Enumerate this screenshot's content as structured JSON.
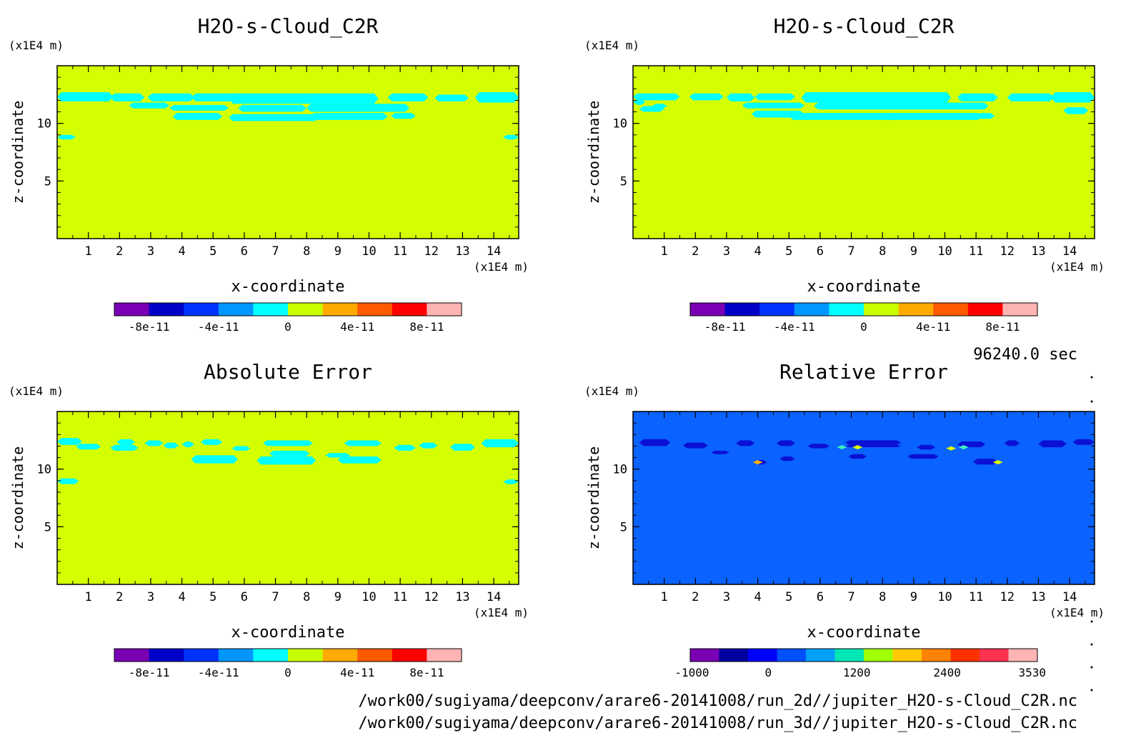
{
  "time_label": "96240.0 sec",
  "files": [
    "/work00/sugiyama/deepconv/arare6-20141008/run_2d//jupiter_H2O-s-Cloud_C2R.nc",
    "/work00/sugiyama/deepconv/arare6-20141008/run_3d//jupiter_H2O-s-Cloud_C2R.nc"
  ],
  "colors": {
    "background_field": "#d4ff00",
    "cloud": "#00ffff",
    "relative_background": "#0a62ff",
    "relative_dark": "#0b11d4",
    "highlight_yellow": "#e2ff00",
    "highlight_orange": "#ffb000"
  },
  "chart_data": [
    {
      "type": "heatmap",
      "title": "H2O-s-Cloud_C2R",
      "xlabel": "x-coordinate",
      "ylabel": "z-coordinate",
      "x_unit": "(x1E4 m)",
      "y_unit": "(x1E4 m)",
      "xlim": [
        0,
        14.8
      ],
      "ylim": [
        0,
        15
      ],
      "x_ticks": [
        "1",
        "2",
        "3",
        "4",
        "5",
        "6",
        "7",
        "8",
        "9",
        "10",
        "11",
        "12",
        "13",
        "14"
      ],
      "y_ticks": [
        "5",
        "10"
      ],
      "cloud_layer_z": [
        10.2,
        12.6
      ],
      "colorbar": {
        "colors": [
          "#7a00b4",
          "#0000c8",
          "#0032ff",
          "#0096ff",
          "#00ffff",
          "#c8ff00",
          "#ffaa00",
          "#ff5a00",
          "#ff0000",
          "#ffb4b4"
        ],
        "labels": [
          "-8e-11",
          "-4e-11",
          "0",
          "4e-11",
          "8e-11"
        ]
      }
    },
    {
      "type": "heatmap",
      "title": "H2O-s-Cloud_C2R",
      "xlabel": "x-coordinate",
      "ylabel": "z-coordinate",
      "x_unit": "(x1E4 m)",
      "y_unit": "(x1E4 m)",
      "xlim": [
        0,
        14.8
      ],
      "ylim": [
        0,
        15
      ],
      "x_ticks": [
        "1",
        "2",
        "3",
        "4",
        "5",
        "6",
        "7",
        "8",
        "9",
        "10",
        "11",
        "12",
        "13",
        "14"
      ],
      "y_ticks": [
        "5",
        "10"
      ],
      "cloud_layer_z": [
        10.3,
        12.6
      ],
      "colorbar": {
        "colors": [
          "#7a00b4",
          "#0000c8",
          "#0032ff",
          "#0096ff",
          "#00ffff",
          "#c8ff00",
          "#ffaa00",
          "#ff5a00",
          "#ff0000",
          "#ffb4b4"
        ],
        "labels": [
          "-8e-11",
          "-4e-11",
          "0",
          "4e-11",
          "8e-11"
        ]
      }
    },
    {
      "type": "heatmap",
      "title": "Absolute Error",
      "xlabel": "x-coordinate",
      "ylabel": "z-coordinate",
      "x_unit": "(x1E4 m)",
      "y_unit": "(x1E4 m)",
      "xlim": [
        0,
        14.8
      ],
      "ylim": [
        0,
        15
      ],
      "x_ticks": [
        "1",
        "2",
        "3",
        "4",
        "5",
        "6",
        "7",
        "8",
        "9",
        "10",
        "11",
        "12",
        "13",
        "14"
      ],
      "y_ticks": [
        "5",
        "10"
      ],
      "cloud_layer_z": [
        10.4,
        12.6
      ],
      "colorbar": {
        "colors": [
          "#7a00b4",
          "#0000c8",
          "#0032ff",
          "#0096ff",
          "#00ffff",
          "#c8ff00",
          "#ffaa00",
          "#ff5a00",
          "#ff0000",
          "#ffb4b4"
        ],
        "labels": [
          "-8e-11",
          "-4e-11",
          "0",
          "4e-11",
          "8e-11"
        ]
      }
    },
    {
      "type": "heatmap",
      "title": "Relative Error",
      "xlabel": "x-coordinate",
      "ylabel": "z-coordinate",
      "x_unit": "(x1E4 m)",
      "y_unit": "(x1E4 m)",
      "xlim": [
        0,
        14.8
      ],
      "ylim": [
        0,
        15
      ],
      "x_ticks": [
        "1",
        "2",
        "3",
        "4",
        "5",
        "6",
        "7",
        "8",
        "9",
        "10",
        "11",
        "12",
        "13",
        "14"
      ],
      "y_ticks": [
        "5",
        "10"
      ],
      "cloud_layer_z": [
        10.2,
        12.6
      ],
      "colorbar": {
        "colors": [
          "#7a00b4",
          "#0000a0",
          "#0000ff",
          "#0050ff",
          "#00a0ff",
          "#00e6b4",
          "#a0ff00",
          "#ffc800",
          "#ff8200",
          "#ff3200",
          "#ff3250",
          "#ffb4b4"
        ],
        "labels": [
          "-1000",
          "0",
          "1200",
          "2400",
          "3530"
        ]
      }
    }
  ]
}
